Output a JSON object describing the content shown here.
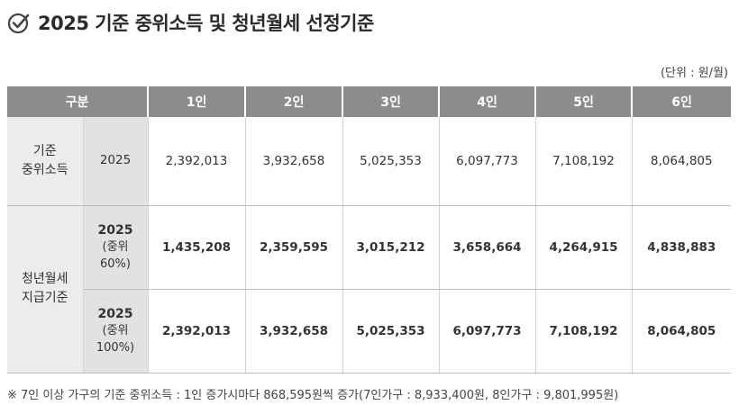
{
  "title": "2025 기준 중위소득 및 청년월세 선정기준",
  "unit_note": "(단위 : 원/월)",
  "columns": [
    "구분",
    "1인",
    "2인",
    "3인",
    "4인",
    "5인",
    "6인"
  ],
  "rows": {
    "median": {
      "category": [
        "기준",
        "중위소득"
      ],
      "sub": "2025",
      "values": [
        "2,392,013",
        "3,932,658",
        "5,025,353",
        "6,097,773",
        "7,108,192",
        "8,064,805"
      ]
    },
    "support_category": [
      "청년월세",
      "지급기준"
    ],
    "support60": {
      "sub_year": "2025",
      "sub_pct": [
        "(중위",
        "60%)"
      ],
      "values": [
        "1,435,208",
        "2,359,595",
        "3,015,212",
        "3,658,664",
        "4,264,915",
        "4,838,883"
      ]
    },
    "support100": {
      "sub_year": "2025",
      "sub_pct": [
        "(중위",
        "100%)"
      ],
      "values": [
        "2,392,013",
        "3,932,658",
        "5,025,353",
        "6,097,773",
        "7,108,192",
        "8,064,805"
      ]
    }
  },
  "footnote": "※ 7인 이상 가구의 기준 중위소득 : 1인 증가시마다 868,595원씩 증가(7인가구 : 8,933,400원, 8인가구 : 9,801,995원)"
}
